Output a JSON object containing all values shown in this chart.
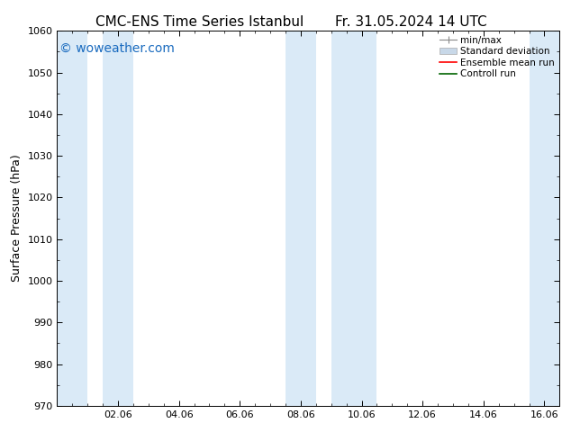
{
  "title_left": "CMC-ENS Time Series Istanbul",
  "title_right": "Fr. 31.05.2024 14 UTC",
  "ylabel": "Surface Pressure (hPa)",
  "ylim": [
    970,
    1060
  ],
  "yticks": [
    970,
    980,
    990,
    1000,
    1010,
    1020,
    1030,
    1040,
    1050,
    1060
  ],
  "xlim": [
    0,
    16.5
  ],
  "xtick_labels": [
    "02.06",
    "04.06",
    "06.06",
    "08.06",
    "10.06",
    "12.06",
    "14.06",
    "16.06"
  ],
  "xtick_positions": [
    2,
    4,
    6,
    8,
    10,
    12,
    14,
    16
  ],
  "shaded_bands": [
    {
      "x_start": 0.0,
      "x_end": 1.0,
      "color": "#daeaf7"
    },
    {
      "x_start": 1.5,
      "x_end": 2.5,
      "color": "#daeaf7"
    },
    {
      "x_start": 7.5,
      "x_end": 8.5,
      "color": "#daeaf7"
    },
    {
      "x_start": 9.0,
      "x_end": 10.5,
      "color": "#daeaf7"
    },
    {
      "x_start": 15.5,
      "x_end": 16.5,
      "color": "#daeaf7"
    }
  ],
  "watermark_text": "© woweather.com",
  "watermark_color": "#1a6bbf",
  "watermark_fontsize": 10,
  "background_color": "#ffffff",
  "plot_bg_color": "#ffffff",
  "title_fontsize": 11,
  "axis_label_fontsize": 9,
  "tick_fontsize": 8,
  "legend_fontsize": 7.5
}
